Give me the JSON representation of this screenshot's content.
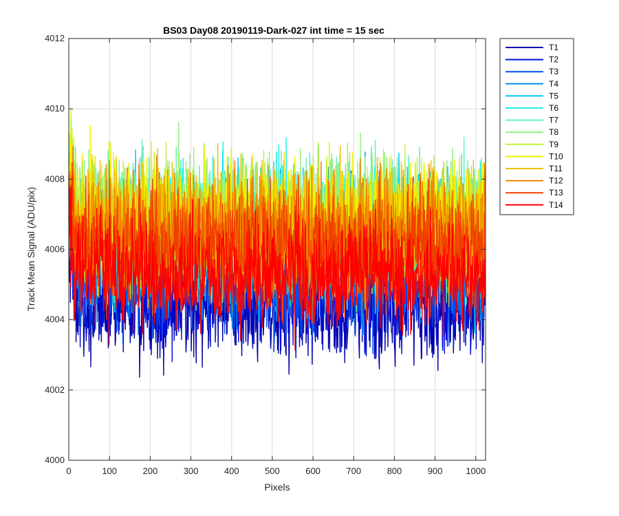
{
  "chart_data": {
    "type": "line",
    "title": "BS03 Day08 20190119-Dark-027 int time = 15 sec",
    "xlabel": "Pixels",
    "ylabel": "Track Mean Signal (ADU/pix)",
    "xlim": [
      0,
      1024
    ],
    "ylim": [
      4000,
      4012
    ],
    "xticks": [
      0,
      100,
      200,
      300,
      400,
      500,
      600,
      700,
      800,
      900,
      1000
    ],
    "yticks": [
      4000,
      4002,
      4004,
      4006,
      4008,
      4010,
      4012
    ],
    "grid": true,
    "legend_position": "outside-top-right",
    "x_count": 1024,
    "series": [
      {
        "name": "T1",
        "color": "#0000aa",
        "mean": 4004.4,
        "spread": 1.0,
        "min": 4000.8,
        "max": 4006.6
      },
      {
        "name": "T2",
        "color": "#0010d8",
        "mean": 4004.8,
        "spread": 1.0,
        "min": 4001.4,
        "max": 4007.0
      },
      {
        "name": "T3",
        "color": "#0050f0",
        "mean": 4005.2,
        "spread": 1.0,
        "min": 4002.0,
        "max": 4007.6
      },
      {
        "name": "T4",
        "color": "#0090f0",
        "mean": 4006.0,
        "spread": 1.2,
        "min": 4002.2,
        "max": 4010.3
      },
      {
        "name": "T5",
        "color": "#00c8f0",
        "mean": 4006.4,
        "spread": 1.2,
        "min": 4002.4,
        "max": 4010.0
      },
      {
        "name": "T6",
        "color": "#20f0f0",
        "mean": 4006.6,
        "spread": 1.2,
        "min": 4002.6,
        "max": 4010.0
      },
      {
        "name": "T7",
        "color": "#60f0c0",
        "mean": 4006.7,
        "spread": 1.2,
        "min": 4002.6,
        "max": 4010.0
      },
      {
        "name": "T8",
        "color": "#90f080",
        "mean": 4006.8,
        "spread": 1.2,
        "min": 4002.8,
        "max": 4010.0
      },
      {
        "name": "T9",
        "color": "#c0f040",
        "mean": 4006.8,
        "spread": 1.2,
        "min": 4002.8,
        "max": 4010.0
      },
      {
        "name": "T10",
        "color": "#f0f000",
        "mean": 4006.8,
        "spread": 1.2,
        "min": 4002.2,
        "max": 4010.6
      },
      {
        "name": "T11",
        "color": "#f0c000",
        "mean": 4006.6,
        "spread": 1.2,
        "min": 4002.4,
        "max": 4010.4
      },
      {
        "name": "T12",
        "color": "#f08000",
        "mean": 4006.4,
        "spread": 1.2,
        "min": 4002.4,
        "max": 4011.1
      },
      {
        "name": "T13",
        "color": "#f04000",
        "mean": 4006.0,
        "spread": 1.1,
        "min": 4002.2,
        "max": 4010.3
      },
      {
        "name": "T14",
        "color": "#ff0000",
        "mean": 4005.3,
        "spread": 1.0,
        "min": 4001.4,
        "max": 4009.0
      }
    ]
  }
}
